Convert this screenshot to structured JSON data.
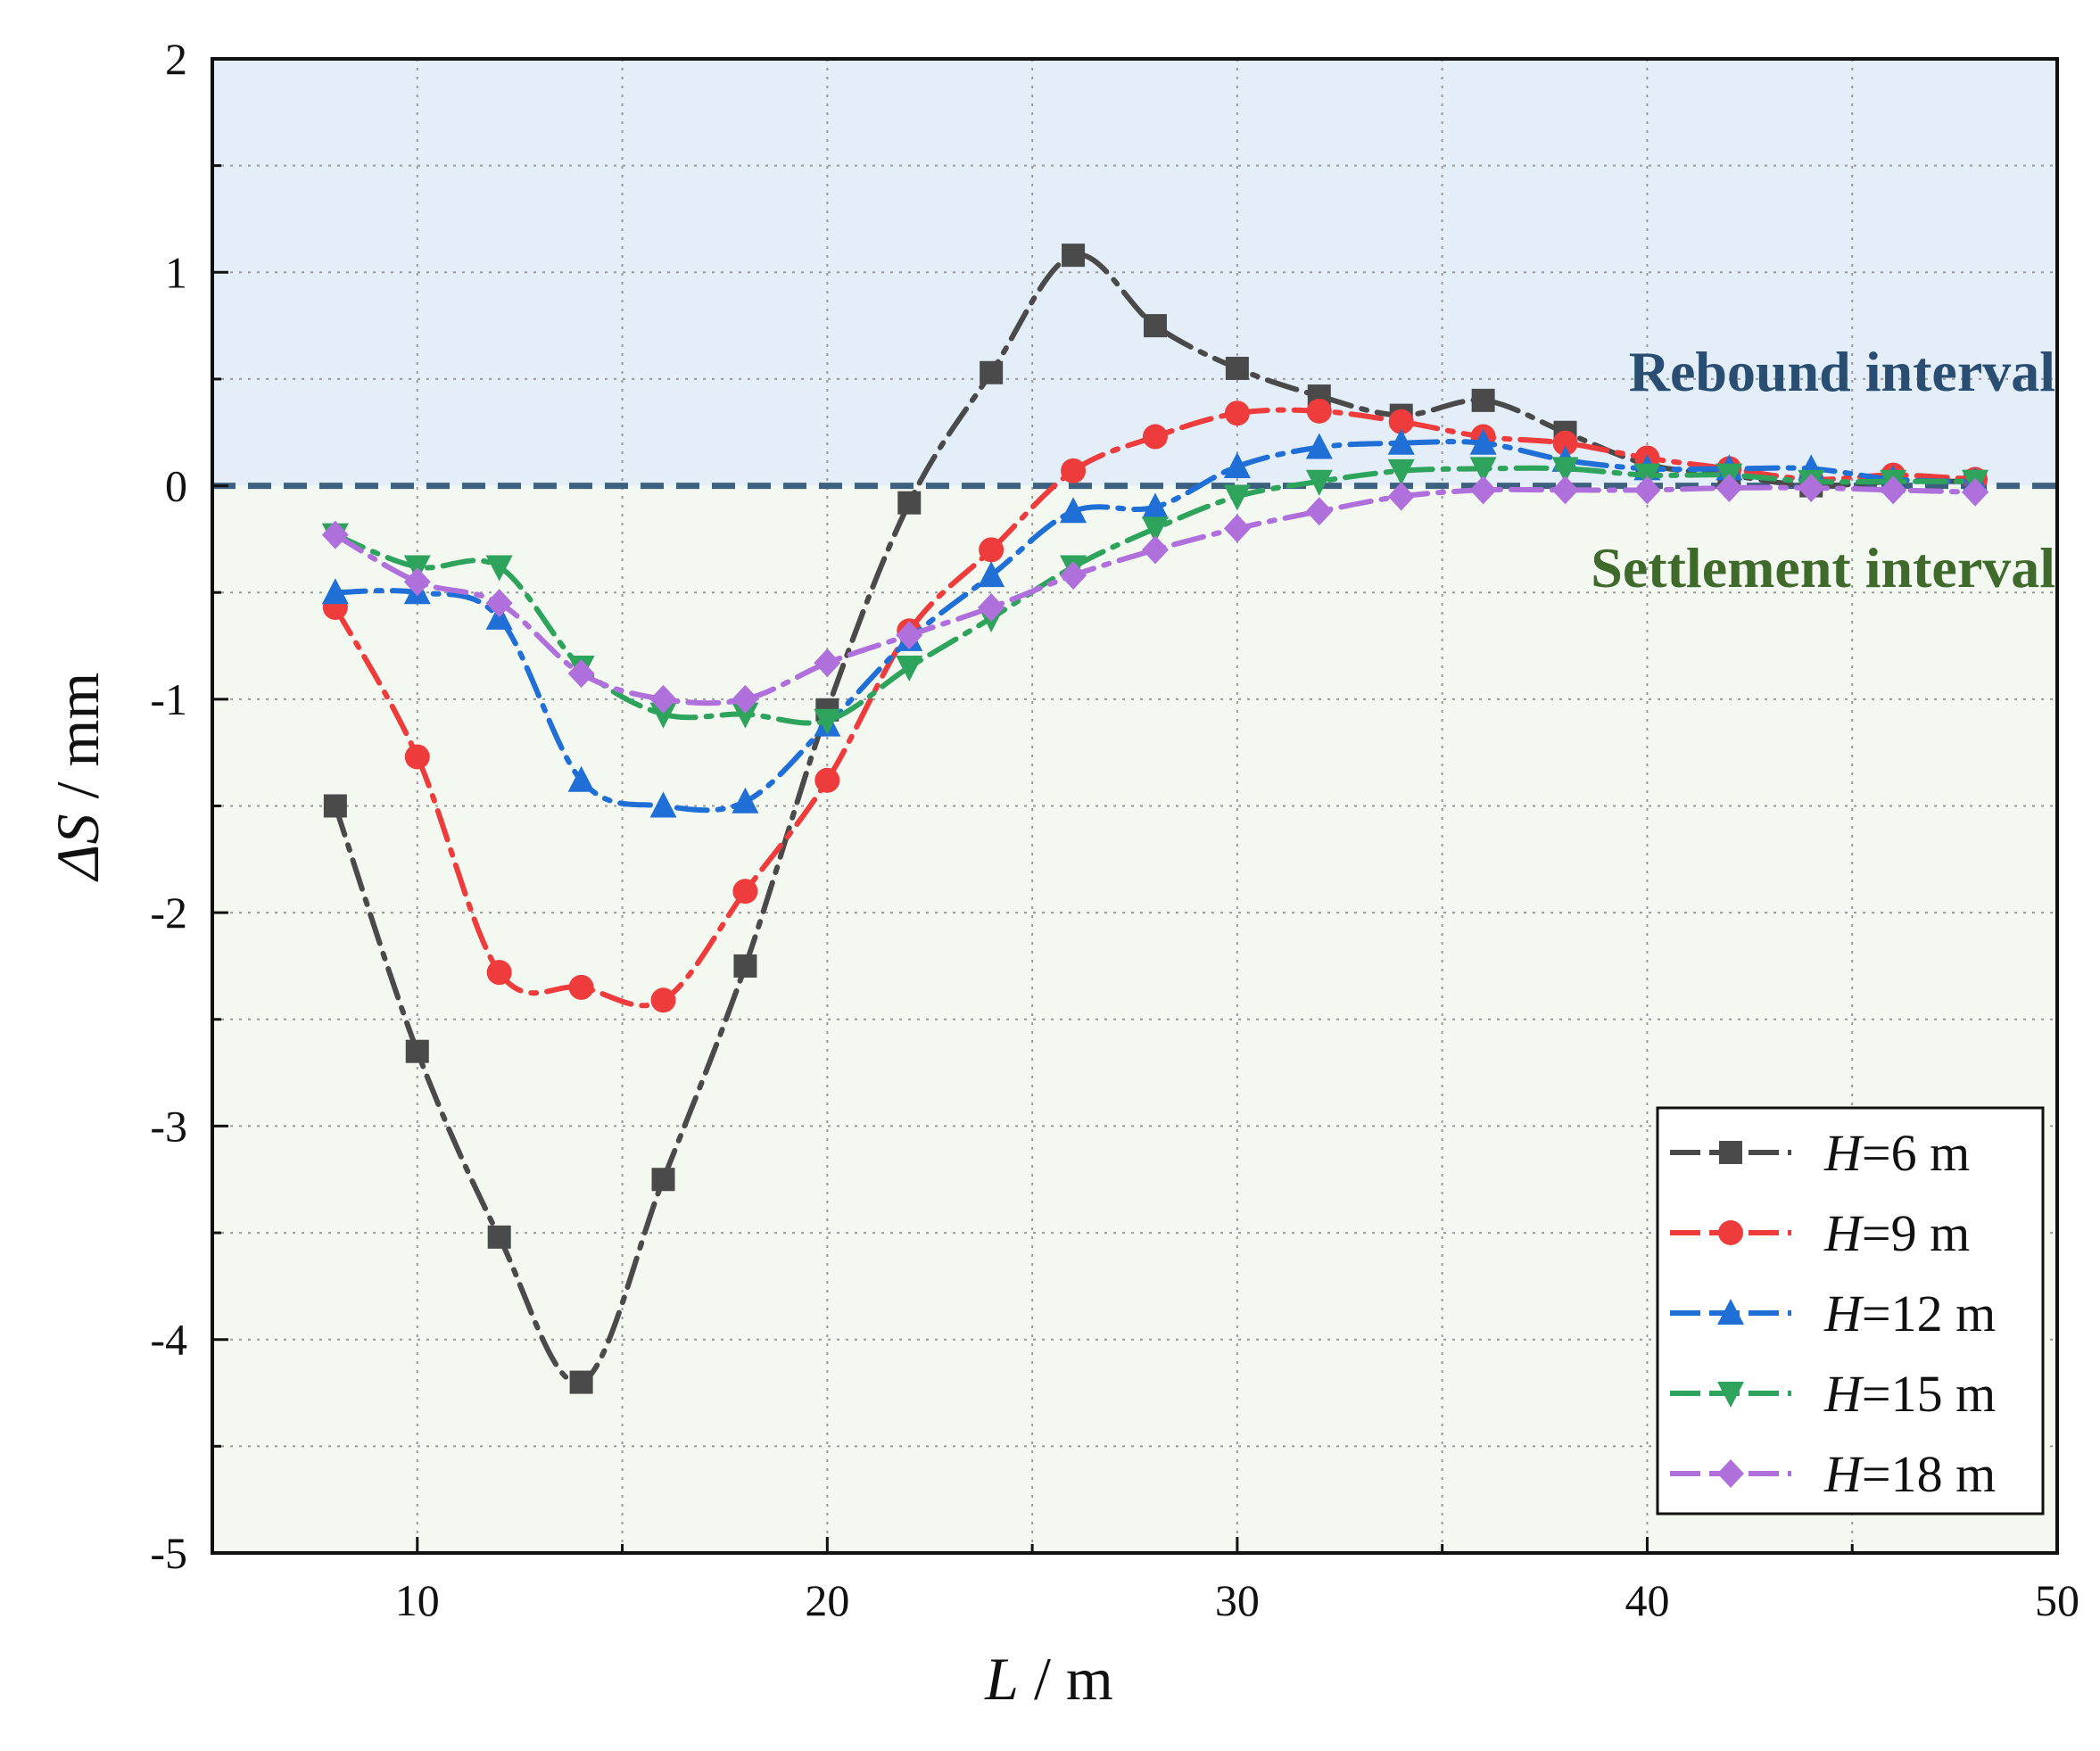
{
  "chart_data": {
    "type": "line",
    "xlabel_var": "L",
    "xlabel_unit": "m",
    "ylabel_var": "ΔS",
    "ylabel_unit": "mm",
    "xlim": [
      5,
      50
    ],
    "ylim": [
      -5,
      2
    ],
    "x_ticks": [
      10,
      20,
      30,
      40,
      50
    ],
    "y_ticks": [
      -5,
      -4,
      -3,
      -2,
      -1,
      0,
      1,
      2
    ],
    "grid": true,
    "zones": {
      "rebound": {
        "label": "Rebound interval",
        "color": "#e3eef8",
        "text_color": "#2a4e72"
      },
      "settlement": {
        "label": "Settlement interval",
        "color": "#f3f8f1",
        "text_color": "#3f6a2b"
      },
      "baseline_color": "#3d6080"
    },
    "legend_position": "bottom-right",
    "series": [
      {
        "var": "H",
        "name": "=6 m",
        "color": "#4a4a4a",
        "marker": "square",
        "x": [
          8,
          10,
          12,
          14,
          16,
          18,
          20,
          22,
          24,
          26,
          28,
          30,
          32,
          34,
          36,
          38,
          40,
          42,
          44,
          46,
          48
        ],
        "y": [
          -1.5,
          -2.65,
          -3.52,
          -4.2,
          -3.25,
          -2.25,
          -1.05,
          -0.08,
          0.53,
          1.08,
          0.75,
          0.55,
          0.42,
          0.33,
          0.4,
          0.25,
          0.1,
          0.05,
          0.0,
          0.02,
          0.02
        ]
      },
      {
        "var": "H",
        "name": "=9 m",
        "color": "#ee3b3b",
        "marker": "circle",
        "x": [
          8,
          10,
          12,
          14,
          16,
          18,
          20,
          22,
          24,
          26,
          28,
          30,
          32,
          34,
          36,
          38,
          40,
          42,
          44,
          46,
          48
        ],
        "y": [
          -0.57,
          -1.27,
          -2.28,
          -2.35,
          -2.41,
          -1.9,
          -1.38,
          -0.68,
          -0.3,
          0.07,
          0.23,
          0.34,
          0.35,
          0.3,
          0.23,
          0.2,
          0.13,
          0.08,
          0.03,
          0.05,
          0.03
        ]
      },
      {
        "var": "H",
        "name": "=12 m",
        "color": "#1f6fd6",
        "marker": "triangle-up",
        "x": [
          8,
          10,
          12,
          14,
          16,
          18,
          20,
          22,
          24,
          26,
          28,
          30,
          32,
          34,
          36,
          38,
          40,
          42,
          44,
          46,
          48
        ],
        "y": [
          -0.5,
          -0.5,
          -0.62,
          -1.38,
          -1.5,
          -1.48,
          -1.12,
          -0.72,
          -0.42,
          -0.12,
          -0.1,
          0.09,
          0.18,
          0.2,
          0.2,
          0.12,
          0.08,
          0.08,
          0.08,
          0.03,
          0.02
        ]
      },
      {
        "var": "H",
        "name": "=15 m",
        "color": "#2ea35c",
        "marker": "triangle-down",
        "x": [
          8,
          10,
          12,
          14,
          16,
          18,
          20,
          22,
          24,
          26,
          28,
          30,
          32,
          34,
          36,
          38,
          40,
          42,
          44,
          46,
          48
        ],
        "y": [
          -0.23,
          -0.38,
          -0.38,
          -0.85,
          -1.07,
          -1.07,
          -1.1,
          -0.85,
          -0.62,
          -0.38,
          -0.2,
          -0.05,
          0.02,
          0.07,
          0.08,
          0.08,
          0.05,
          0.05,
          0.02,
          0.02,
          0.02
        ]
      },
      {
        "var": "H",
        "name": "=18 m",
        "color": "#b070dc",
        "marker": "diamond",
        "x": [
          8,
          10,
          12,
          14,
          16,
          18,
          20,
          22,
          24,
          26,
          28,
          30,
          32,
          34,
          36,
          38,
          40,
          42,
          44,
          46,
          48
        ],
        "y": [
          -0.23,
          -0.45,
          -0.55,
          -0.88,
          -1.0,
          -1.0,
          -0.83,
          -0.7,
          -0.57,
          -0.42,
          -0.3,
          -0.2,
          -0.12,
          -0.05,
          -0.02,
          -0.02,
          -0.02,
          -0.01,
          -0.01,
          -0.02,
          -0.03
        ]
      }
    ]
  }
}
